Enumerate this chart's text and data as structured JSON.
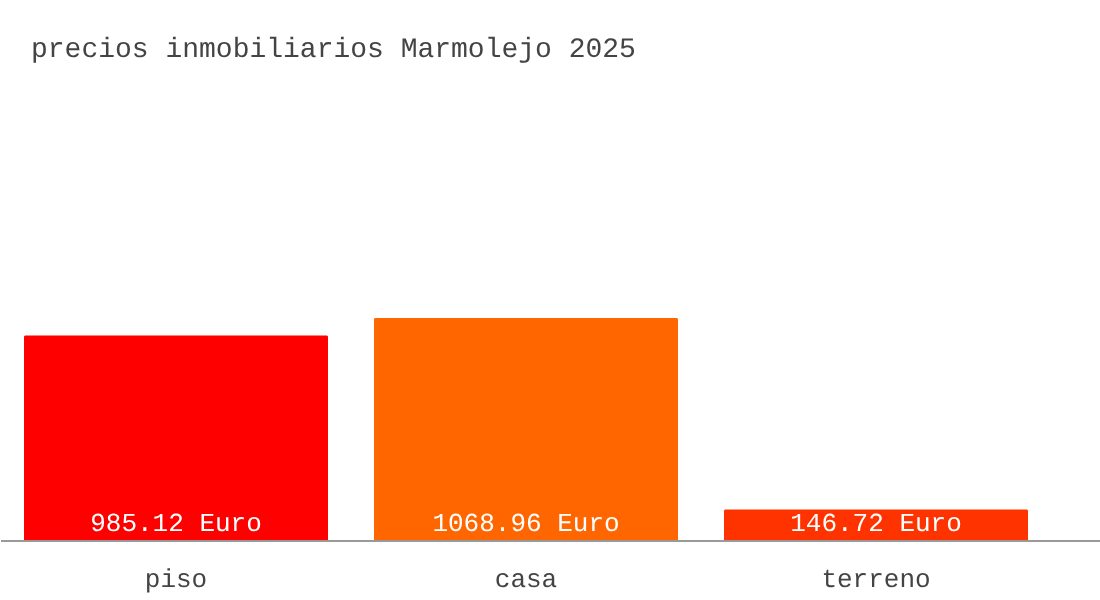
{
  "chart_data": {
    "type": "bar",
    "title": "precios inmobiliarios Marmolejo 2025",
    "categories": [
      "piso",
      "casa",
      "terreno"
    ],
    "values": [
      985.12,
      1068.96,
      146.72
    ],
    "colors": [
      "#ff0000",
      "#ff6600",
      "#ff3300"
    ],
    "value_labels": [
      "985.12 Euro",
      "1068.96 Euro",
      "146.72 Euro"
    ]
  }
}
